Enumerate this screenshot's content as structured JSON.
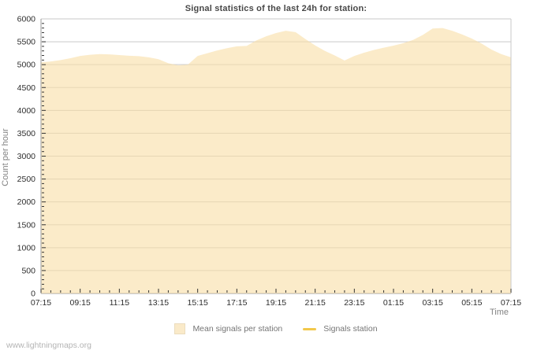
{
  "page": {
    "watermark": "www.lightningmaps.org"
  },
  "colors": {
    "area_fill": "#F8DEA8",
    "area_fill_opacity": 0.62,
    "legend_area_swatch": "#FAEAC9",
    "legend_line_swatch": "#F2C84B",
    "grid": "#C9C9C9",
    "axis": "#999999",
    "tick": "#333333",
    "title_text": "#474747",
    "axis_title_text": "#848484",
    "tick_label_text": "#2e2e2e",
    "legend_text": "#757575",
    "watermark_text": "#b4b4b4"
  },
  "legend": {
    "items": [
      {
        "label": "Mean signals per station",
        "swatch": "area"
      },
      {
        "label": "Signals station",
        "swatch": "line"
      }
    ]
  },
  "chart_data": {
    "type": "area",
    "title": "Signal statistics of the last 24h for station:",
    "xlabel": "Time",
    "ylabel": "Count per hour",
    "ylim": [
      0,
      6000
    ],
    "y_major_step": 500,
    "y_minor_step": 100,
    "x_minor_step_minutes": 30,
    "x_major_step_minutes": 120,
    "grid": "horizontal-major",
    "legend_position": "bottom",
    "x_major_tick_labels": [
      "07:15",
      "09:15",
      "11:15",
      "13:15",
      "15:15",
      "17:15",
      "19:15",
      "21:15",
      "23:15",
      "01:15",
      "03:15",
      "05:15",
      "07:15"
    ],
    "series": [
      {
        "name": "Mean signals per station",
        "type": "area",
        "x": [
          "07:15",
          "07:45",
          "08:15",
          "08:45",
          "09:15",
          "09:45",
          "10:15",
          "10:45",
          "11:15",
          "11:45",
          "12:15",
          "12:45",
          "13:15",
          "13:45",
          "14:15",
          "14:45",
          "15:15",
          "15:45",
          "16:15",
          "16:45",
          "17:15",
          "17:45",
          "18:15",
          "18:45",
          "19:15",
          "19:45",
          "20:15",
          "20:45",
          "21:15",
          "21:45",
          "22:15",
          "22:45",
          "23:15",
          "23:45",
          "00:15",
          "00:45",
          "01:15",
          "01:45",
          "02:15",
          "02:45",
          "03:15",
          "03:45",
          "04:15",
          "04:45",
          "05:15",
          "05:45",
          "06:15",
          "06:45",
          "07:15"
        ],
        "values": [
          5050,
          5070,
          5100,
          5140,
          5190,
          5215,
          5230,
          5225,
          5210,
          5195,
          5185,
          5160,
          5120,
          5030,
          4985,
          5000,
          5190,
          5250,
          5310,
          5360,
          5400,
          5410,
          5530,
          5620,
          5690,
          5740,
          5710,
          5560,
          5420,
          5300,
          5200,
          5090,
          5190,
          5260,
          5320,
          5370,
          5415,
          5470,
          5540,
          5650,
          5790,
          5800,
          5740,
          5660,
          5570,
          5460,
          5330,
          5230,
          5160
        ]
      },
      {
        "name": "Signals station",
        "type": "line",
        "values": []
      }
    ]
  }
}
